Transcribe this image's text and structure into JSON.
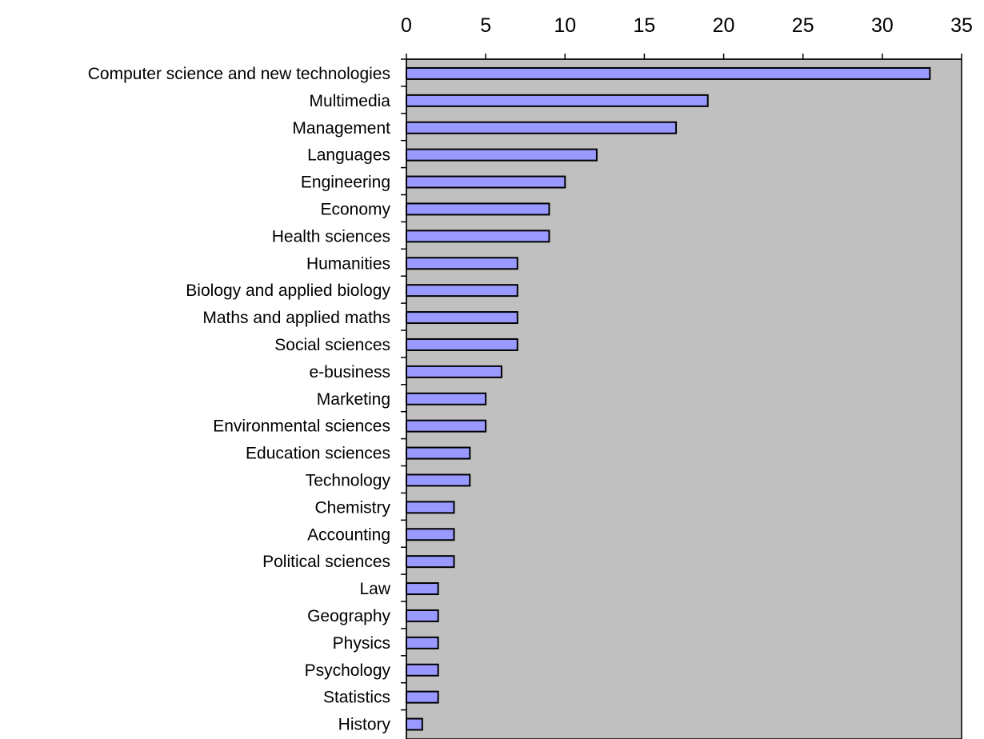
{
  "chart_data": {
    "type": "bar",
    "orientation": "horizontal",
    "title": "",
    "xlabel": "",
    "ylabel": "",
    "xlim": [
      0,
      35
    ],
    "x_ticks": [
      0,
      5,
      10,
      15,
      20,
      25,
      30,
      35
    ],
    "x_tick_labels": [
      "0",
      "5",
      "10",
      "15",
      "20",
      "25",
      "30",
      "35"
    ],
    "x_axis_position": "top",
    "grid": false,
    "legend": "none",
    "categories": [
      "Computer science and new technologies",
      "Multimedia",
      "Management",
      "Languages",
      "Engineering",
      "Economy",
      "Health sciences",
      "Humanities",
      "Biology and applied biology",
      "Maths and applied maths",
      "Social sciences",
      "e-business",
      "Marketing",
      "Environmental sciences",
      "Education sciences",
      "Technology",
      "Chemistry",
      "Accounting",
      "Political sciences",
      "Law",
      "Geography",
      "Physics",
      "Psychology",
      "Statistics",
      "History"
    ],
    "values": [
      33,
      19,
      17,
      12,
      10,
      9,
      9,
      7,
      7,
      7,
      7,
      6,
      5,
      5,
      4,
      4,
      3,
      3,
      3,
      2,
      2,
      2,
      2,
      2,
      1
    ],
    "colors": {
      "bar_fill": "#9999ff",
      "bar_stroke": "#000000",
      "plot_background": "#c0c0c0",
      "axis": "#000000"
    }
  }
}
